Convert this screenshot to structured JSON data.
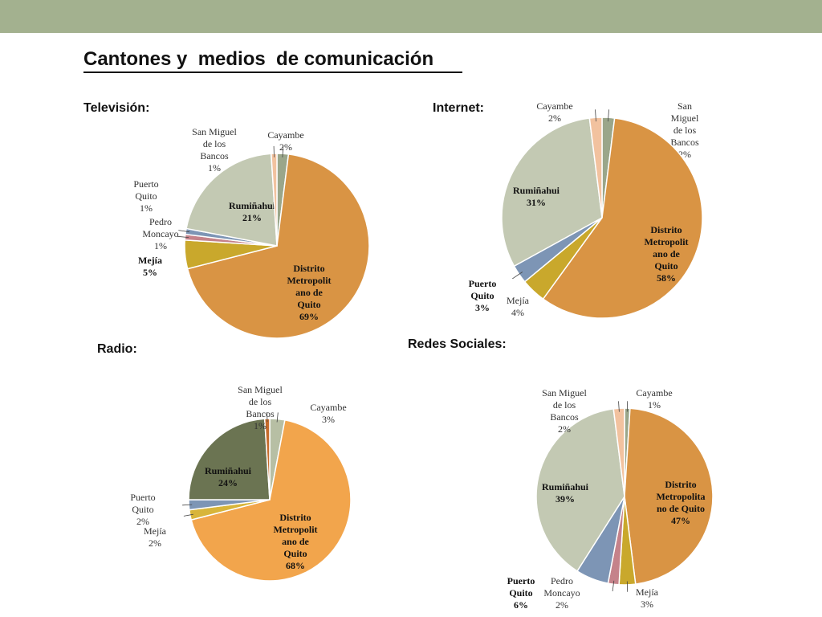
{
  "slide": {
    "title": "Cantones y  medios  de comunicación ",
    "accent_bar_color": "#a3b18f"
  },
  "chart_data": [
    {
      "type": "pie",
      "title": "Televisión:",
      "slices": [
        {
          "label": [
            "Cayambe"
          ],
          "value": 2,
          "display": "2%",
          "color": "#9aa68a",
          "bold": false
        },
        {
          "label": [
            "Distrito",
            "Metropolit",
            "ano de",
            "Quito"
          ],
          "value": 69,
          "display": "69%",
          "color": "#d99444",
          "bold": true
        },
        {
          "label": [
            "Mejía"
          ],
          "value": 5,
          "display": "5%",
          "color": "#c9a82c",
          "bold": true
        },
        {
          "label": [
            "Pedro",
            "Moncayo"
          ],
          "value": 1,
          "display": "1%",
          "color": "#c5828a",
          "bold": false
        },
        {
          "label": [
            "Puerto",
            "Quito"
          ],
          "value": 1,
          "display": "1%",
          "color": "#7d95b5",
          "bold": false
        },
        {
          "label": [
            "Rumiñahui"
          ],
          "value": 21,
          "display": "21%",
          "color": "#c3c9b3",
          "bold": true
        },
        {
          "label": [
            "San Miguel",
            "de los",
            "Bancos"
          ],
          "value": 1,
          "display": "1%",
          "color": "#f2c29f",
          "bold": false
        }
      ]
    },
    {
      "type": "pie",
      "title": "Internet:",
      "slices": [
        {
          "label": [
            "San",
            "Miguel",
            "de los",
            "Bancos"
          ],
          "value": 2,
          "display": "2%",
          "color": "#9aa68a",
          "bold": false
        },
        {
          "label": [
            "Distrito",
            "Metropolit",
            "ano de",
            "Quito"
          ],
          "value": 58,
          "display": "58%",
          "color": "#d99444",
          "bold": true
        },
        {
          "label": [
            "Mejía"
          ],
          "value": 4,
          "display": "4%",
          "color": "#c9a82c",
          "bold": false
        },
        {
          "label": [
            "Puerto",
            "Quito"
          ],
          "value": 3,
          "display": "3%",
          "color": "#7d95b5",
          "bold": true
        },
        {
          "label": [
            "Rumiñahui"
          ],
          "value": 31,
          "display": "31%",
          "color": "#c3c9b3",
          "bold": true
        },
        {
          "label": [
            "Cayambe"
          ],
          "value": 2,
          "display": "2%",
          "color": "#f2c29f",
          "bold": false
        }
      ]
    },
    {
      "type": "pie",
      "title": "Radio:",
      "slices": [
        {
          "label": [
            "Cayambe"
          ],
          "value": 3,
          "display": "3%",
          "color": "#b7bfa4",
          "bold": false
        },
        {
          "label": [
            "Distrito",
            "Metropolit",
            "ano de",
            "Quito"
          ],
          "value": 68,
          "display": "68%",
          "color": "#f2a54c",
          "bold": true
        },
        {
          "label": [
            "Mejía"
          ],
          "value": 2,
          "display": "2%",
          "color": "#d8b53a",
          "bold": false
        },
        {
          "label": [
            "Puerto",
            "Quito"
          ],
          "value": 2,
          "display": "2%",
          "color": "#7d95b5",
          "bold": false
        },
        {
          "label": [
            "Rumiñahui"
          ],
          "value": 24,
          "display": "24%",
          "color": "#6b7452",
          "bold": true
        },
        {
          "label": [
            "San Miguel",
            "de los",
            "Bancos"
          ],
          "value": 1,
          "display": "1%",
          "color": "#c56b2c",
          "bold": false
        }
      ]
    },
    {
      "type": "pie",
      "title": "Redes Sociales:",
      "slices": [
        {
          "label": [
            "Cayambe"
          ],
          "value": 1,
          "display": "1%",
          "color": "#9aa68a",
          "bold": false
        },
        {
          "label": [
            "Distrito",
            "Metropolita",
            "no de Quito"
          ],
          "value": 47,
          "display": "47%",
          "color": "#d99444",
          "bold": true
        },
        {
          "label": [
            "Mejía"
          ],
          "value": 3,
          "display": "3%",
          "color": "#c9a82c",
          "bold": false
        },
        {
          "label": [
            "Pedro",
            "Moncayo"
          ],
          "value": 2,
          "display": "2%",
          "color": "#c5828a",
          "bold": false
        },
        {
          "label": [
            "Puerto",
            "Quito"
          ],
          "value": 6,
          "display": "6%",
          "color": "#7d95b5",
          "bold": true
        },
        {
          "label": [
            "Rumiñahui"
          ],
          "value": 39,
          "display": "39%",
          "color": "#c3c9b3",
          "bold": true
        },
        {
          "label": [
            "San Miguel",
            "de los",
            "Bancos"
          ],
          "value": 2,
          "display": "2%",
          "color": "#f2c29f",
          "bold": false
        }
      ]
    }
  ]
}
